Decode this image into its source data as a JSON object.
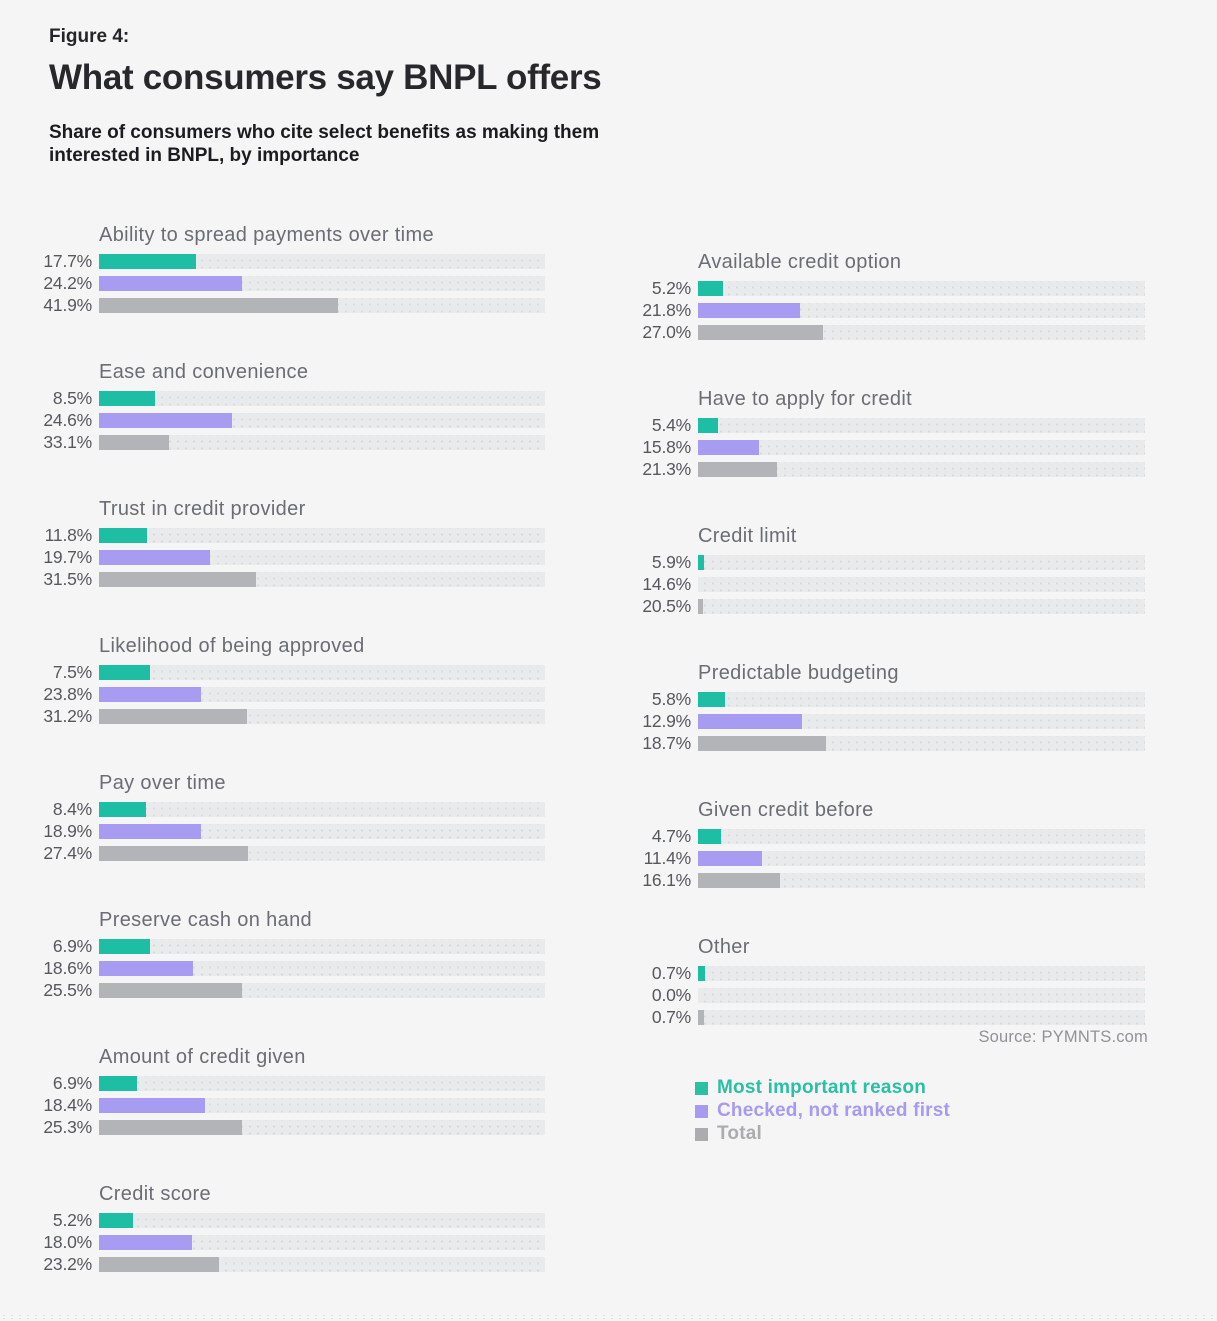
{
  "header": {
    "figure_label": "Figure 4:"
  },
  "chart_data": {
    "type": "bar",
    "orientation": "horizontal",
    "title": "What consumers say BNPL offers",
    "subtitle_lines": [
      "Share of consumers who cite select benefits as making them",
      "interested in BNPL, by importance"
    ],
    "value_unit": "percent",
    "xlim": [
      0,
      100
    ],
    "grid": false,
    "legend_position": "bottom-right",
    "series": [
      {
        "name": "Most important reason",
        "color": "#1ebea5",
        "legend_color": "#2bbfa4"
      },
      {
        "name": "Checked, not ranked first",
        "color": "#a89bf2",
        "legend_color": "#a79af0"
      },
      {
        "name": "Total",
        "color": "#b3b4b7",
        "legend_color": "#abacaf"
      }
    ],
    "columns": [
      {
        "groups": [
          {
            "label": "Ability to spread payments over time",
            "values": [
              17.7,
              24.2,
              41.9
            ],
            "bar_track_fractions": [
              0.217,
              0.32,
              0.535
            ]
          },
          {
            "label": "Ease and convenience",
            "values": [
              8.5,
              24.6,
              33.1
            ],
            "bar_track_fractions": [
              0.125,
              0.298,
              0.157
            ]
          },
          {
            "label": "Trust in credit provider",
            "values": [
              11.8,
              19.7,
              31.5
            ],
            "bar_track_fractions": [
              0.107,
              0.248,
              0.351
            ]
          },
          {
            "label": "Likelihood of being approved",
            "values": [
              7.5,
              23.8,
              31.2
            ],
            "bar_track_fractions": [
              0.114,
              0.228,
              0.331
            ]
          },
          {
            "label": "Pay over time",
            "values": [
              8.4,
              18.9,
              27.4
            ],
            "bar_track_fractions": [
              0.105,
              0.228,
              0.333
            ]
          },
          {
            "label": "Preserve cash on hand",
            "values": [
              6.9,
              18.6,
              25.5
            ],
            "bar_track_fractions": [
              0.114,
              0.21,
              0.32
            ]
          },
          {
            "label": "Amount of credit given",
            "values": [
              6.9,
              18.4,
              25.3
            ],
            "bar_track_fractions": [
              0.085,
              0.237,
              0.32
            ]
          },
          {
            "label": "Credit score",
            "values": [
              5.2,
              18.0,
              23.2
            ],
            "bar_track_fractions": [
              0.076,
              0.208,
              0.269
            ]
          }
        ]
      },
      {
        "groups": [
          {
            "label": "Available credit option",
            "values": [
              5.2,
              21.8,
              27.0
            ],
            "bar_track_fractions": [
              0.056,
              0.228,
              0.279
            ]
          },
          {
            "label": "Have to apply for credit",
            "values": [
              5.4,
              15.8,
              21.3
            ],
            "bar_track_fractions": [
              0.045,
              0.136,
              0.176
            ]
          },
          {
            "label": "Credit limit",
            "values": [
              5.9,
              14.6,
              20.5
            ],
            "bar_track_fractions": [
              0.013,
              0.0,
              0.012
            ]
          },
          {
            "label": "Predictable budgeting",
            "values": [
              5.8,
              12.9,
              18.7
            ],
            "bar_track_fractions": [
              0.06,
              0.232,
              0.286
            ]
          },
          {
            "label": "Given credit before",
            "values": [
              4.7,
              11.4,
              16.1
            ],
            "bar_track_fractions": [
              0.051,
              0.143,
              0.183
            ]
          },
          {
            "label": "Other",
            "values": [
              0.7,
              0.0,
              0.7
            ],
            "bar_track_fractions": [
              0.015,
              0.0,
              0.013
            ]
          }
        ]
      }
    ],
    "source": "Source: PYMNTS.com"
  },
  "colors": {
    "background": "#f5f5f6",
    "track": "#e9eaec",
    "teal": "#1ebea5",
    "purple": "#a89bf2",
    "gray": "#b3b4b7"
  }
}
